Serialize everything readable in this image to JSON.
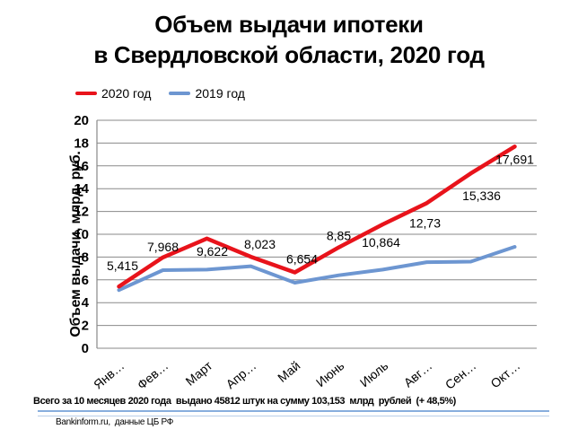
{
  "title": {
    "line1": "Объем выдачи ипотеки",
    "line2": "в Свердловской области, 2020 год"
  },
  "legend": {
    "items": [
      {
        "label": "2020 год",
        "color": "#e8131b"
      },
      {
        "label": "2019 год",
        "color": "#6d96d1"
      }
    ]
  },
  "chart_data": {
    "type": "line",
    "title": "Объем выдачи ипотеки в Свердловской области, 2020 год",
    "ylabel": "Объем выдачи, млрд. руб.",
    "xlabel": "",
    "ylim": [
      0,
      20
    ],
    "ytick_step": 2,
    "grid": true,
    "grid_color": "#898989",
    "axis_color": "#898989",
    "legend_position": "top-left",
    "categories": [
      "Янв…",
      "Фев…",
      "Март",
      "Апр…",
      "Май",
      "Июнь",
      "Июль",
      "Авг…",
      "Сен…",
      "Окт…"
    ],
    "series": [
      {
        "name": "2020 год",
        "color": "#e8131b",
        "stroke_width": 4.5,
        "values": [
          5.415,
          7.968,
          9.622,
          8.023,
          6.654,
          8.85,
          10.864,
          12.73,
          15.336,
          17.691
        ],
        "point_labels": [
          "5,415",
          "7,968",
          "9,622",
          "8,023",
          "6,654",
          "8,85",
          "10,864",
          "12,73",
          "15,336",
          "17,691"
        ],
        "label_offsets": [
          [
            4,
            -18
          ],
          [
            0,
            -7
          ],
          [
            6,
            19
          ],
          [
            10,
            -9
          ],
          [
            8,
            -10
          ],
          [
            0,
            -8
          ],
          [
            -2,
            25
          ],
          [
            -2,
            27
          ],
          [
            12,
            30
          ],
          [
            0,
            19
          ]
        ]
      },
      {
        "name": "2019 год",
        "color": "#6d96d1",
        "stroke_width": 4,
        "values": [
          5.1,
          6.85,
          6.9,
          7.2,
          5.75,
          6.4,
          6.9,
          7.55,
          7.6,
          8.9
        ],
        "point_labels": [],
        "label_offsets": []
      }
    ]
  },
  "footer": {
    "summary": "Всего за 10 месяцев 2020 года  выдано 45812 штук на сумму 103,153  млрд  рублей  (+ 48,5%)",
    "source": "Bankinform.ru,  данные ЦБ РФ"
  }
}
